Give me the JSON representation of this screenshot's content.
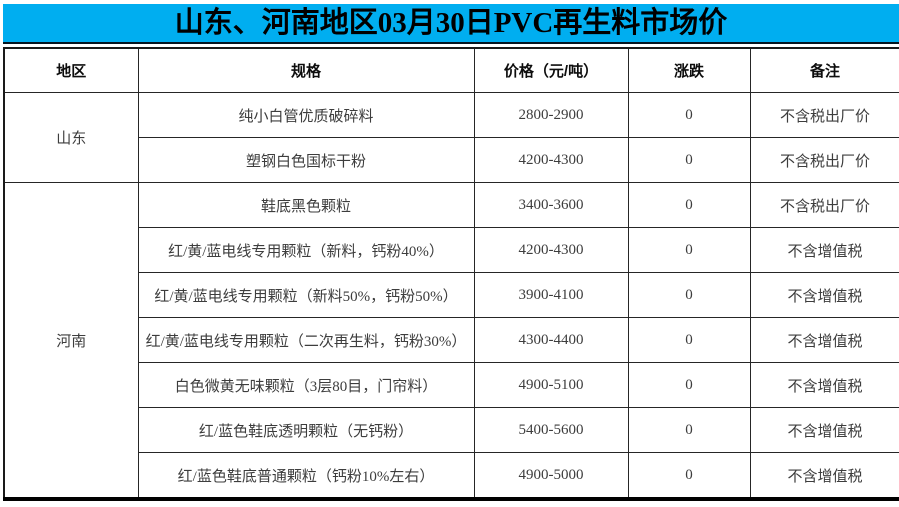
{
  "page": {
    "title": "山东、河南地区03月30日PVC再生料市场价"
  },
  "colors": {
    "title_bg": "#00AEF0",
    "title_text": "#000000",
    "grid_border": "#262626",
    "cell_text": "#3d3d3d",
    "bottom_border": "#000000"
  },
  "table": {
    "headers": {
      "region": "地区",
      "spec": "规格",
      "price": "价格（元/吨）",
      "change": "涨跌",
      "note": "备注"
    },
    "regions": [
      {
        "name": "山东",
        "rowspan": 2
      },
      {
        "name": "河南",
        "rowspan": 7
      }
    ],
    "rows": [
      {
        "region": "山东",
        "spec": "纯小白管优质破碎料",
        "price": "2800-2900",
        "change": "0",
        "note": "不含税出厂价"
      },
      {
        "region": "山东",
        "spec": "塑钢白色国标干粉",
        "price": "4200-4300",
        "change": "0",
        "note": "不含税出厂价"
      },
      {
        "region": "河南",
        "spec": "鞋底黑色颗粒",
        "price": "3400-3600",
        "change": "0",
        "note": "不含税出厂价"
      },
      {
        "region": "河南",
        "spec": "红/黄/蓝电线专用颗粒（新料，钙粉40%）",
        "price": "4200-4300",
        "change": "0",
        "note": "不含增值税"
      },
      {
        "region": "河南",
        "spec": "红/黄/蓝电线专用颗粒（新料50%，钙粉50%）",
        "price": "3900-4100",
        "change": "0",
        "note": "不含增值税"
      },
      {
        "region": "河南",
        "spec": "红/黄/蓝电线专用颗粒（二次再生料，钙粉30%）",
        "price": "4300-4400",
        "change": "0",
        "note": "不含增值税"
      },
      {
        "region": "河南",
        "spec": "白色微黄无味颗粒（3层80目，门帘料）",
        "price": "4900-5100",
        "change": "0",
        "note": "不含增值税"
      },
      {
        "region": "河南",
        "spec": "红/蓝色鞋底透明颗粒（无钙粉）",
        "price": "5400-5600",
        "change": "0",
        "note": "不含增值税"
      },
      {
        "region": "河南",
        "spec": "红/蓝色鞋底普通颗粒（钙粉10%左右）",
        "price": "4900-5000",
        "change": "0",
        "note": "不含增值税"
      }
    ]
  }
}
